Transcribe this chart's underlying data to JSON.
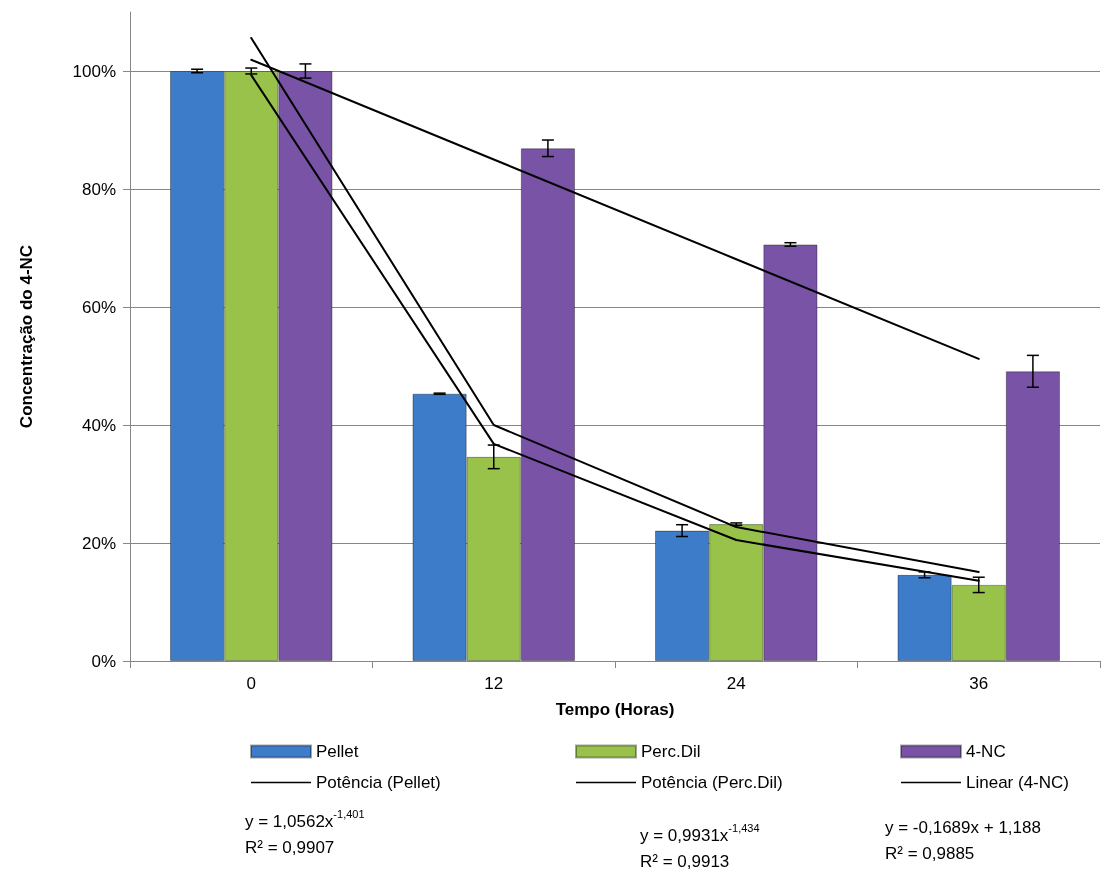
{
  "chart_data": {
    "type": "bar",
    "ylabel": "Concentração do 4-NC",
    "xlabel": "Tempo (Horas)",
    "categories": [
      "0",
      "12",
      "24",
      "36"
    ],
    "ylim": [
      0,
      110
    ],
    "yticks": [
      {
        "value": 0,
        "label": "0%"
      },
      {
        "value": 20,
        "label": "20%"
      },
      {
        "value": 40,
        "label": "40%"
      },
      {
        "value": 60,
        "label": "60%"
      },
      {
        "value": 80,
        "label": "80%"
      },
      {
        "value": 100,
        "label": "100%"
      }
    ],
    "grid": "y",
    "legend": "bottom",
    "series": [
      {
        "name": "Pellet",
        "color": "#3d7cc9",
        "values": [
          100,
          45.3,
          22.1,
          14.6
        ],
        "errors": [
          0.3,
          0.1,
          1.0,
          0.5
        ]
      },
      {
        "name": "Perc.Dil",
        "color": "#98c24a",
        "values": [
          100,
          34.6,
          23.2,
          12.9
        ],
        "errors": [
          0.5,
          2.0,
          0.2,
          1.3
        ]
      },
      {
        "name": "4-NC",
        "color": "#7953a6",
        "values": [
          100,
          86.9,
          70.6,
          49.1
        ],
        "errors": [
          1.2,
          1.4,
          0.3,
          2.7
        ]
      },
      {
        "name": "Potência (Pellet)",
        "type": "line",
        "color": "#000000",
        "values": [
          105.6,
          40.0,
          22.7,
          15.1
        ]
      },
      {
        "name": "Potência (Perc.Dil)",
        "type": "line",
        "color": "#000000",
        "values": [
          99.3,
          36.8,
          20.5,
          13.6
        ]
      },
      {
        "name": "Linear (4-NC)",
        "type": "line",
        "color": "#000000",
        "values": [
          101.9,
          85.0,
          68.1,
          51.2
        ]
      }
    ],
    "annotations": [
      "y = 1,0562x$^{-1,401}$\nR² = 0,9907",
      "y = 0,9931x$^{-1,434}$\nR² = 0,9913",
      "y = -0,1689x + 1,188\nR² = 0,9885"
    ]
  }
}
